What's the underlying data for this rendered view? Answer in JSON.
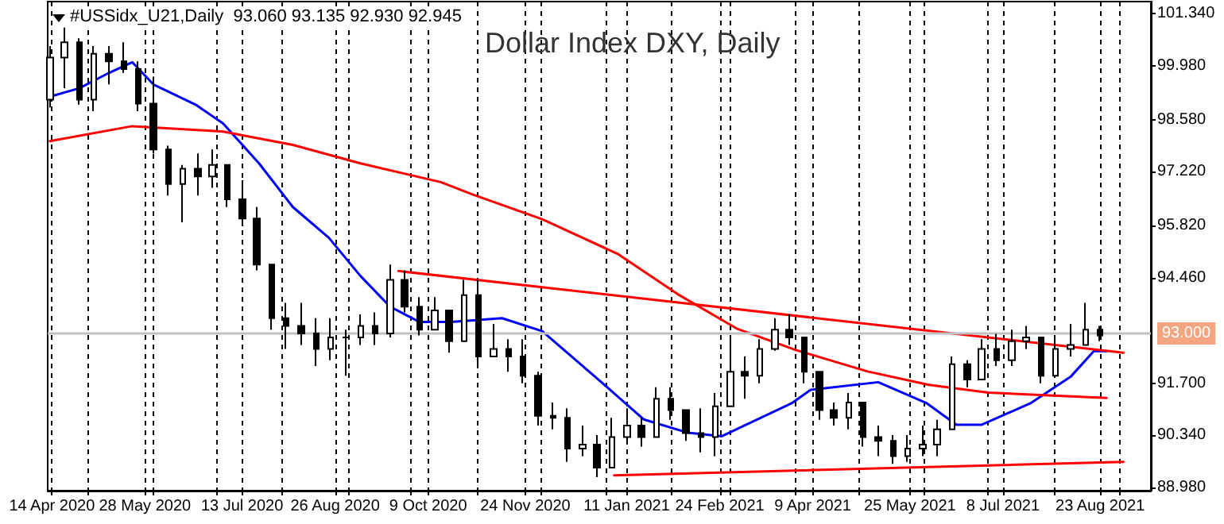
{
  "chart_data": {
    "type": "candlestick",
    "title": "Dollar Index DXY, Daily",
    "annotations": [
      "#USSidx_U21,Daily  93.060 93.135 92.930 92.945"
    ],
    "ylim": [
      88.9,
      101.66
    ],
    "yticks": [
      {
        "value": 88.98,
        "label": "88.980"
      },
      {
        "value": 90.34,
        "label": "90.340"
      },
      {
        "value": 91.7,
        "label": "91.700"
      },
      {
        "value": 94.46,
        "label": "94.460"
      },
      {
        "value": 95.82,
        "label": "95.820"
      },
      {
        "value": 97.22,
        "label": "97.220"
      },
      {
        "value": 98.58,
        "label": "98.580"
      },
      {
        "value": 99.98,
        "label": "99.980"
      },
      {
        "value": 101.34,
        "label": "101.340"
      }
    ],
    "xlim": [
      "2020-04-12",
      "2021-09-16"
    ],
    "xticks": [
      {
        "value": "2020-04-14",
        "label": "14 Apr 2020"
      },
      {
        "value": "2020-05-01",
        "label": null
      },
      {
        "value": "2020-05-28",
        "label": "28 May 2020"
      },
      {
        "value": "2020-06-01",
        "label": null
      },
      {
        "value": "2020-07-01",
        "label": null
      },
      {
        "value": "2020-07-13",
        "label": "13 Jul 2020"
      },
      {
        "value": "2020-08-01",
        "label": null
      },
      {
        "value": "2020-08-26",
        "label": "26 Aug 2020"
      },
      {
        "value": "2020-09-01",
        "label": null
      },
      {
        "value": "2020-10-01",
        "label": null
      },
      {
        "value": "2020-10-09",
        "label": "9 Oct 2020"
      },
      {
        "value": "2020-11-01",
        "label": null
      },
      {
        "value": "2020-11-24",
        "label": "24 Nov 2020"
      },
      {
        "value": "2020-12-01",
        "label": null
      },
      {
        "value": "2021-01-01",
        "label": null
      },
      {
        "value": "2021-01-11",
        "label": "11 Jan 2021"
      },
      {
        "value": "2021-02-01",
        "label": null
      },
      {
        "value": "2021-02-24",
        "label": "24 Feb 2021"
      },
      {
        "value": "2021-03-01",
        "label": null
      },
      {
        "value": "2021-04-01",
        "label": null
      },
      {
        "value": "2021-04-09",
        "label": "9 Apr 2021"
      },
      {
        "value": "2021-05-01",
        "label": null
      },
      {
        "value": "2021-05-25",
        "label": "25 May 2021"
      },
      {
        "value": "2021-06-01",
        "label": null
      },
      {
        "value": "2021-07-01",
        "label": null
      },
      {
        "value": "2021-07-08",
        "label": "8 Jul 2021"
      },
      {
        "value": "2021-08-01",
        "label": null
      },
      {
        "value": "2021-08-23",
        "label": "23 Aug 2021"
      },
      {
        "value": "2021-09-01",
        "label": null
      }
    ],
    "grid": "x",
    "marker": "none",
    "ref_lines": [
      {
        "axis": "y",
        "value": 93,
        "label": "93.000",
        "color": "#c0c0c0"
      }
    ],
    "series": [
      {
        "type": "candlestick",
        "color": "#000000",
        "x": [
          "2020-04-13",
          "2020-04-20",
          "2020-04-27",
          "2020-05-04",
          "2020-05-11",
          "2020-05-18",
          "2020-05-25",
          "2020-06-01",
          "2020-06-08",
          "2020-06-15",
          "2020-06-22",
          "2020-06-29",
          "2020-07-06",
          "2020-07-13",
          "2020-07-20",
          "2020-07-27",
          "2020-08-03",
          "2020-08-10",
          "2020-08-17",
          "2020-08-24",
          "2020-08-31",
          "2020-09-07",
          "2020-09-14",
          "2020-09-21",
          "2020-09-28",
          "2020-10-05",
          "2020-10-12",
          "2020-10-19",
          "2020-10-26",
          "2020-11-02",
          "2020-11-09",
          "2020-11-16",
          "2020-11-23",
          "2020-11-30",
          "2020-12-07",
          "2020-12-14",
          "2020-12-21",
          "2020-12-28",
          "2021-01-04",
          "2021-01-11",
          "2021-01-18",
          "2021-01-25",
          "2021-02-01",
          "2021-02-08",
          "2021-02-15",
          "2021-02-22",
          "2021-03-01",
          "2021-03-08",
          "2021-03-15",
          "2021-03-22",
          "2021-03-29",
          "2021-04-05",
          "2021-04-12",
          "2021-04-19",
          "2021-04-26",
          "2021-05-03",
          "2021-05-10",
          "2021-05-17",
          "2021-05-24",
          "2021-05-31",
          "2021-06-07",
          "2021-06-14",
          "2021-06-21",
          "2021-06-28",
          "2021-07-05",
          "2021-07-12",
          "2021-07-19",
          "2021-07-26",
          "2021-08-02",
          "2021-08-09",
          "2021-08-16",
          "2021-08-23"
        ],
        "ohlc": [
          [
            99.1,
            100.5,
            98.9,
            100.2
          ],
          [
            100.2,
            100.98,
            99.4,
            100.6
          ],
          [
            100.6,
            100.7,
            98.97,
            99.1
          ],
          [
            99.1,
            100.5,
            98.8,
            100.3
          ],
          [
            100.3,
            100.5,
            99.5,
            100.1
          ],
          [
            100.1,
            100.6,
            99.8,
            99.9
          ],
          [
            99.9,
            100.1,
            98.8,
            99.0
          ],
          [
            99.0,
            99.7,
            97.7,
            97.8
          ],
          [
            97.8,
            97.9,
            96.6,
            96.9
          ],
          [
            96.9,
            97.4,
            95.9,
            97.3
          ],
          [
            97.3,
            97.7,
            96.6,
            97.1
          ],
          [
            97.1,
            97.8,
            96.8,
            97.4
          ],
          [
            97.4,
            97.4,
            96.3,
            96.5
          ],
          [
            96.5,
            97.0,
            95.8,
            96.0
          ],
          [
            96.0,
            96.3,
            94.65,
            94.8
          ],
          [
            94.8,
            94.8,
            93.1,
            93.4
          ],
          [
            93.4,
            93.8,
            92.6,
            93.2
          ],
          [
            93.2,
            93.8,
            92.7,
            93.0
          ],
          [
            93.0,
            93.4,
            92.15,
            92.6
          ],
          [
            92.6,
            93.4,
            92.3,
            92.9
          ],
          [
            92.9,
            93.1,
            91.9,
            92.9
          ],
          [
            92.9,
            93.5,
            92.7,
            93.2
          ],
          [
            93.2,
            93.55,
            92.7,
            93.0
          ],
          [
            93.0,
            94.8,
            92.9,
            94.4
          ],
          [
            94.4,
            94.65,
            93.55,
            93.7
          ],
          [
            93.7,
            93.95,
            92.95,
            93.1
          ],
          [
            93.1,
            93.95,
            93.1,
            93.6
          ],
          [
            93.6,
            93.6,
            92.5,
            92.8
          ],
          [
            92.8,
            94.4,
            92.8,
            94.0
          ],
          [
            94.0,
            94.4,
            92.15,
            92.4
          ],
          [
            92.4,
            93.25,
            92.4,
            92.6
          ],
          [
            92.6,
            92.85,
            92.0,
            92.4
          ],
          [
            92.4,
            92.85,
            91.7,
            91.9
          ],
          [
            91.9,
            92.0,
            90.6,
            90.85
          ],
          [
            90.85,
            91.2,
            90.5,
            90.8
          ],
          [
            90.8,
            91.05,
            89.65,
            90.0
          ],
          [
            90.0,
            90.6,
            89.8,
            90.1
          ],
          [
            90.1,
            90.35,
            89.25,
            89.5
          ],
          [
            89.5,
            90.8,
            89.5,
            90.3
          ],
          [
            90.3,
            91.05,
            90.2,
            90.6
          ],
          [
            90.6,
            90.8,
            90.05,
            90.3
          ],
          [
            90.3,
            91.6,
            90.3,
            91.3
          ],
          [
            91.3,
            91.6,
            90.75,
            91.0
          ],
          [
            91.0,
            91.0,
            90.2,
            90.4
          ],
          [
            90.4,
            91.05,
            89.9,
            90.3
          ],
          [
            90.3,
            91.45,
            89.8,
            91.1
          ],
          [
            91.1,
            92.85,
            91.1,
            92.0
          ],
          [
            92.0,
            92.4,
            91.3,
            91.9
          ],
          [
            91.9,
            92.85,
            91.7,
            92.6
          ],
          [
            92.6,
            93.4,
            92.55,
            93.1
          ],
          [
            93.1,
            93.5,
            92.7,
            92.9
          ],
          [
            92.9,
            92.9,
            91.7,
            92.0
          ],
          [
            92.0,
            92.0,
            90.75,
            91.0
          ],
          [
            91.0,
            91.2,
            90.6,
            90.8
          ],
          [
            90.8,
            91.45,
            90.5,
            91.2
          ],
          [
            91.2,
            91.2,
            90.05,
            90.3
          ],
          [
            90.3,
            90.6,
            89.8,
            90.2
          ],
          [
            90.2,
            90.35,
            89.6,
            89.8
          ],
          [
            89.8,
            90.35,
            89.65,
            90.0
          ],
          [
            90.0,
            90.6,
            89.8,
            90.1
          ],
          [
            90.1,
            90.75,
            89.8,
            90.5
          ],
          [
            90.5,
            92.4,
            90.5,
            92.2
          ],
          [
            92.2,
            92.3,
            91.6,
            91.8
          ],
          [
            91.8,
            92.85,
            91.8,
            92.6
          ],
          [
            92.6,
            92.99,
            92.15,
            92.3
          ],
          [
            92.3,
            93.1,
            92.15,
            92.8
          ],
          [
            92.8,
            93.2,
            92.6,
            92.9
          ],
          [
            92.9,
            92.9,
            91.7,
            91.9
          ],
          [
            91.9,
            92.85,
            91.9,
            92.6
          ],
          [
            92.6,
            93.25,
            92.4,
            92.7
          ],
          [
            92.7,
            93.8,
            92.7,
            93.1
          ],
          [
            93.1,
            93.2,
            92.8,
            92.95
          ]
        ]
      },
      {
        "type": "line",
        "color": "#0000ff",
        "x": [
          "2020-04-13",
          "2020-04-27",
          "2020-05-11",
          "2020-05-22",
          "2020-06-01",
          "2020-06-21",
          "2020-07-04",
          "2020-07-21",
          "2020-08-06",
          "2020-08-23",
          "2020-09-07",
          "2020-09-21",
          "2020-10-05",
          "2020-10-20",
          "2020-11-13",
          "2020-12-02",
          "2020-12-30",
          "2021-01-19",
          "2021-02-09",
          "2021-02-25",
          "2021-03-30",
          "2021-04-08",
          "2021-05-10",
          "2021-06-02",
          "2021-06-16",
          "2021-06-28",
          "2021-07-21",
          "2021-08-09",
          "2021-08-20",
          "2021-08-26"
        ],
        "values": [
          99.18,
          99.4,
          99.8,
          100.08,
          99.5,
          98.97,
          98.48,
          97.44,
          96.3,
          95.5,
          94.5,
          93.7,
          93.3,
          93.3,
          93.4,
          93.06,
          91.73,
          90.76,
          90.41,
          90.32,
          91.18,
          91.53,
          91.73,
          91.18,
          90.62,
          90.62,
          91.18,
          91.87,
          92.54,
          92.54
        ]
      },
      {
        "type": "line",
        "color": "#ff0000",
        "x": [
          "2020-04-13",
          "2020-05-22",
          "2020-07-04",
          "2020-08-06",
          "2020-09-07",
          "2020-10-15",
          "2020-10-30",
          "2020-12-02",
          "2021-01-07",
          "2021-02-04",
          "2021-03-04",
          "2021-04-01",
          "2021-05-05",
          "2021-06-03",
          "2021-07-01",
          "2021-08-26"
        ],
        "values": [
          98.02,
          98.41,
          98.27,
          97.92,
          97.44,
          96.95,
          96.63,
          95.98,
          95.07,
          94.03,
          93.13,
          92.57,
          92.01,
          91.66,
          91.46,
          91.32
        ]
      },
      {
        "type": "line",
        "color": "#ff0000",
        "x": [
          "2020-09-25",
          "2021-09-03"
        ],
        "values": [
          94.63,
          92.5
        ]
      },
      {
        "type": "line",
        "color": "#ff0000",
        "x": [
          "2021-01-05",
          "2021-09-03"
        ],
        "values": [
          89.3,
          89.65
        ]
      }
    ]
  }
}
